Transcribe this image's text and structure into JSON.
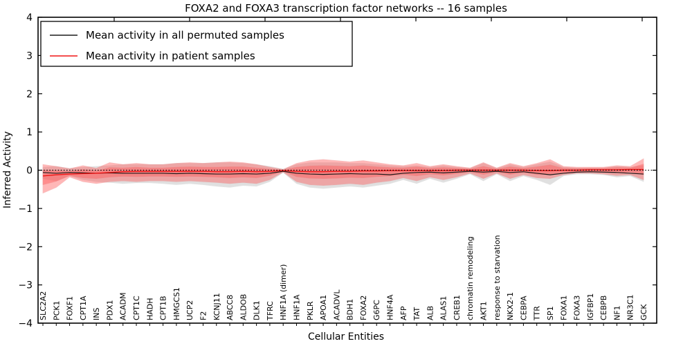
{
  "chart_data": {
    "type": "line",
    "title": "FOXA2 and FOXA3 transcription factor networks -- 16 samples",
    "xlabel": "Cellular Entities",
    "ylabel": "Inferred Activity",
    "ylim": [
      -4,
      4
    ],
    "yticks": [
      4,
      3,
      2,
      1,
      0,
      -1,
      -2,
      -3,
      -4
    ],
    "grid": false,
    "legend_position": "upper left",
    "zero_line": {
      "style": "dotted",
      "color": "#000000",
      "y": 0
    },
    "categories": [
      "SLC2A2",
      "PCK1",
      "FOXF1",
      "CPT1A",
      "INS",
      "PDX1",
      "ACADM",
      "CPT1C",
      "HADH",
      "CPT1B",
      "HMGCS1",
      "UCP2",
      "F2",
      "KCNJ11",
      "ABCC8",
      "ALDOB",
      "DLK1",
      "TFRC",
      "HNF1A (dimer)",
      "HNF1A",
      "PKLR",
      "APOA1",
      "ACADVL",
      "BDH1",
      "FOXA2",
      "G6PC",
      "HNF4A",
      "AFP",
      "TAT",
      "ALB",
      "ALAS1",
      "CREB1",
      "chromatin remodeling",
      "AKT1",
      "response to starvation",
      "NKX2-1",
      "CEBPA",
      "TTR",
      "SP1",
      "FOXA1",
      "FOXA3",
      "IGFBP1",
      "CEBPB",
      "NF1",
      "NR3C1",
      "GCK"
    ],
    "series": [
      {
        "name": "Mean activity in all permuted samples",
        "color": "#1a1a1a",
        "values": [
          -0.06,
          -0.08,
          -0.06,
          -0.07,
          -0.08,
          -0.07,
          -0.08,
          -0.08,
          -0.08,
          -0.08,
          -0.09,
          -0.08,
          -0.09,
          -0.1,
          -0.1,
          -0.09,
          -0.1,
          -0.08,
          -0.03,
          -0.08,
          -0.1,
          -0.11,
          -0.1,
          -0.09,
          -0.1,
          -0.1,
          -0.12,
          -0.08,
          -0.06,
          -0.05,
          -0.07,
          -0.05,
          -0.03,
          -0.05,
          -0.03,
          -0.06,
          -0.04,
          -0.08,
          -0.12,
          -0.08,
          -0.05,
          -0.04,
          -0.05,
          -0.06,
          -0.08,
          -0.1
        ]
      },
      {
        "name": "Mean activity in patient samples",
        "color": "#f01414",
        "values": [
          -0.15,
          -0.12,
          -0.1,
          -0.09,
          -0.08,
          -0.06,
          -0.04,
          -0.03,
          -0.03,
          -0.03,
          -0.03,
          -0.03,
          -0.03,
          -0.04,
          -0.04,
          -0.03,
          -0.04,
          -0.03,
          -0.01,
          -0.03,
          -0.04,
          -0.04,
          -0.03,
          -0.03,
          -0.02,
          -0.02,
          -0.01,
          -0.01,
          -0.01,
          -0.01,
          -0.01,
          0.0,
          0.0,
          0.0,
          0.0,
          0.0,
          0.0,
          -0.01,
          -0.01,
          0.0,
          0.0,
          0.01,
          0.01,
          0.01,
          0.02,
          0.02
        ]
      }
    ],
    "bands": [
      {
        "name": "permuted-spread",
        "color": "#c8c8c8",
        "opacity": 0.55,
        "stroke": "#cfcfcf",
        "upper": [
          0.08,
          0.1,
          0.05,
          0.08,
          0.1,
          0.12,
          0.15,
          0.15,
          0.15,
          0.15,
          0.18,
          0.18,
          0.18,
          0.2,
          0.2,
          0.18,
          0.15,
          0.1,
          0.03,
          0.15,
          0.2,
          0.2,
          0.2,
          0.18,
          0.18,
          0.15,
          0.12,
          0.1,
          0.12,
          0.08,
          0.12,
          0.08,
          0.05,
          0.18,
          0.05,
          0.15,
          0.08,
          0.15,
          0.22,
          0.08,
          0.06,
          0.06,
          0.06,
          0.1,
          0.08,
          0.12
        ],
        "lower": [
          -0.22,
          -0.28,
          -0.15,
          -0.25,
          -0.3,
          -0.32,
          -0.35,
          -0.33,
          -0.33,
          -0.35,
          -0.38,
          -0.35,
          -0.38,
          -0.42,
          -0.45,
          -0.4,
          -0.42,
          -0.3,
          -0.06,
          -0.35,
          -0.45,
          -0.48,
          -0.45,
          -0.42,
          -0.45,
          -0.4,
          -0.35,
          -0.25,
          -0.35,
          -0.22,
          -0.32,
          -0.22,
          -0.1,
          -0.28,
          -0.1,
          -0.28,
          -0.15,
          -0.25,
          -0.38,
          -0.15,
          -0.1,
          -0.1,
          -0.12,
          -0.18,
          -0.15,
          -0.3
        ]
      },
      {
        "name": "patient-spread-outer",
        "color": "#ff5555",
        "opacity": 0.42,
        "stroke": "#ee6666",
        "upper": [
          0.15,
          0.1,
          0.04,
          0.12,
          0.05,
          0.2,
          0.15,
          0.18,
          0.15,
          0.15,
          0.18,
          0.2,
          0.18,
          0.2,
          0.22,
          0.2,
          0.15,
          0.08,
          0.02,
          0.18,
          0.25,
          0.28,
          0.25,
          0.22,
          0.25,
          0.2,
          0.15,
          0.12,
          0.18,
          0.1,
          0.15,
          0.1,
          0.06,
          0.2,
          0.06,
          0.18,
          0.1,
          0.18,
          0.28,
          0.1,
          0.08,
          0.08,
          0.08,
          0.12,
          0.1,
          0.3
        ],
        "lower": [
          -0.6,
          -0.45,
          -0.18,
          -0.3,
          -0.35,
          -0.3,
          -0.28,
          -0.3,
          -0.28,
          -0.28,
          -0.3,
          -0.28,
          -0.3,
          -0.32,
          -0.35,
          -0.32,
          -0.35,
          -0.25,
          -0.05,
          -0.3,
          -0.38,
          -0.4,
          -0.38,
          -0.35,
          -0.38,
          -0.32,
          -0.28,
          -0.2,
          -0.28,
          -0.18,
          -0.25,
          -0.18,
          -0.08,
          -0.22,
          -0.08,
          -0.22,
          -0.12,
          -0.2,
          -0.22,
          -0.12,
          -0.08,
          -0.08,
          -0.1,
          -0.14,
          -0.12,
          -0.25
        ]
      },
      {
        "name": "patient-spread-inner",
        "color": "#ff5555",
        "opacity": 0.42,
        "stroke": "#ee6666",
        "upper": [
          0.0,
          -0.01,
          -0.03,
          0.02,
          -0.02,
          0.07,
          0.06,
          0.08,
          0.06,
          0.06,
          0.08,
          0.09,
          0.08,
          0.08,
          0.09,
          0.09,
          0.06,
          0.03,
          0.01,
          0.08,
          0.11,
          0.12,
          0.11,
          0.1,
          0.12,
          0.09,
          0.07,
          0.06,
          0.09,
          0.05,
          0.07,
          0.05,
          0.03,
          0.1,
          0.03,
          0.09,
          0.05,
          0.09,
          0.14,
          0.05,
          0.04,
          0.05,
          0.05,
          0.07,
          0.06,
          0.16
        ],
        "lower": [
          -0.38,
          -0.29,
          -0.14,
          -0.2,
          -0.22,
          -0.18,
          -0.16,
          -0.17,
          -0.16,
          -0.16,
          -0.17,
          -0.16,
          -0.17,
          -0.18,
          -0.2,
          -0.18,
          -0.2,
          -0.14,
          -0.03,
          -0.17,
          -0.21,
          -0.22,
          -0.21,
          -0.19,
          -0.2,
          -0.17,
          -0.15,
          -0.11,
          -0.15,
          -0.1,
          -0.13,
          -0.09,
          -0.04,
          -0.11,
          -0.04,
          -0.11,
          -0.06,
          -0.11,
          -0.12,
          -0.06,
          -0.04,
          -0.04,
          -0.05,
          -0.07,
          -0.05,
          -0.12
        ]
      }
    ]
  }
}
